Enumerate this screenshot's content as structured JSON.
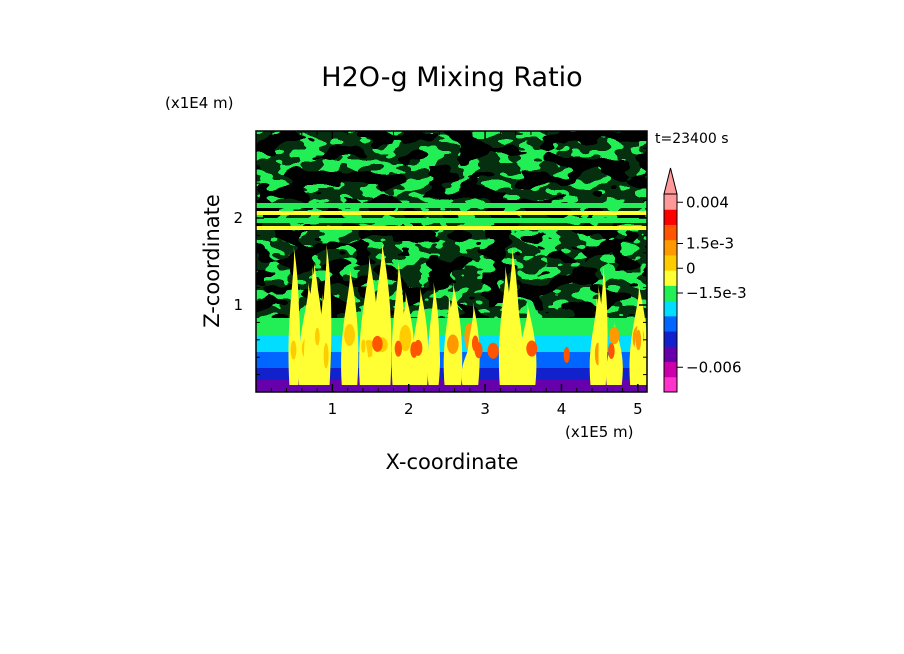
{
  "chart_data": {
    "type": "heatmap",
    "title": "H2O-g Mixing Ratio",
    "time_label": "t=23400 s",
    "xlabel": "X-coordinate",
    "ylabel": "Z-coordinate",
    "x_unit": "(x1E5 m)",
    "y_unit": "(x1E4 m)",
    "xlim": [
      0,
      5.12
    ],
    "ylim": [
      0,
      3.0
    ],
    "x_ticks": [
      {
        "value": 1,
        "label": "1"
      },
      {
        "value": 2,
        "label": "2"
      },
      {
        "value": 3,
        "label": "3"
      },
      {
        "value": 4,
        "label": "4"
      },
      {
        "value": 5,
        "label": "5"
      }
    ],
    "y_ticks": [
      {
        "value": 1,
        "label": "1"
      },
      {
        "value": 2,
        "label": "2"
      }
    ],
    "colorbar": {
      "min": -0.0075,
      "max": 0.0045,
      "colors": [
        "#ff33cc",
        "#cc00aa",
        "#6600aa",
        "#1122cc",
        "#0066ff",
        "#00ddff",
        "#22ee55",
        "#ffff33",
        "#ffcc00",
        "#ff9900",
        "#ff5500",
        "#ff0000",
        "#ff9999"
      ],
      "labels": [
        {
          "value": 0.004,
          "text": "0.004"
        },
        {
          "value": 0.0015,
          "text": "1.5e-3"
        },
        {
          "value": 0,
          "text": "0"
        },
        {
          "value": -0.0015,
          "text": "−1.5e-3"
        },
        {
          "value": -0.006,
          "text": "−0.006"
        }
      ]
    }
  }
}
